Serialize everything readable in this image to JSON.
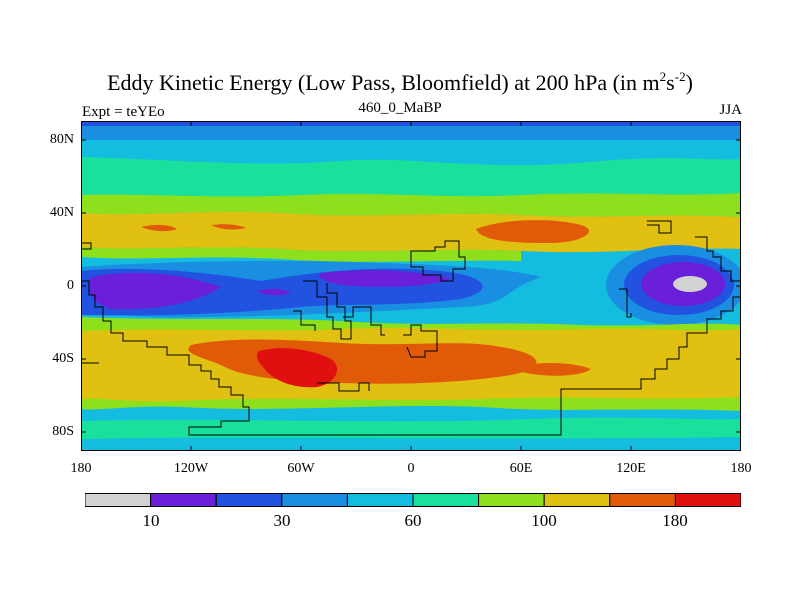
{
  "title_main": "Eddy Kinetic Energy (Low Pass, Bloomfield) at 200 hPa (in m",
  "title_sup1": "2",
  "title_mid": "s",
  "title_sup2": "-2",
  "title_end": ")",
  "subtitle": "460_0_MaBP",
  "left_label": "Expt = teYEo",
  "right_label": "JJA",
  "y_ticks": [
    "80N",
    "40N",
    "0",
    "40S",
    "80S"
  ],
  "x_ticks": [
    "180",
    "120W",
    "60W",
    "0",
    "60E",
    "120E",
    "180"
  ],
  "colorbar": {
    "colors": [
      "#d3d3d3",
      "#6a1fd8",
      "#2153e0",
      "#1a8ee0",
      "#14bde0",
      "#19e09a",
      "#8ee01c",
      "#e0c010",
      "#e05a08",
      "#e01010"
    ],
    "labels": [
      "10",
      "30",
      "60",
      "100",
      "180"
    ]
  }
}
